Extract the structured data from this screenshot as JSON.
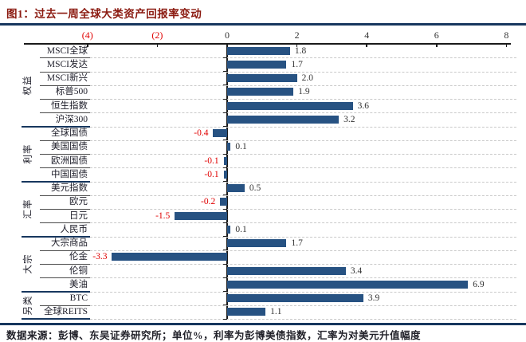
{
  "title": "图1：过去一周全球大类资产回报率变动",
  "footer": "数据来源：彭博、东吴证券研究所；单位%，利率为彭博美债指数，汇率为对美元升值幅度",
  "colors": {
    "bar": "#275282",
    "title": "#8b1a10",
    "negative_label": "#e00000",
    "positive_label": "#333333",
    "axis": "#1a1a1a",
    "rule": "#17375e",
    "grid": "#c9c9c9"
  },
  "chart_data": {
    "type": "bar",
    "orientation": "horizontal",
    "unit": "%",
    "xlim": [
      -6,
      8
    ],
    "grid": "dashed-horizontal",
    "xticks": [
      {
        "value": -4,
        "label": "(4)",
        "negative": true
      },
      {
        "value": -2,
        "label": "(2)",
        "negative": true
      },
      {
        "value": 0,
        "label": "0",
        "negative": false
      },
      {
        "value": 2,
        "label": "2",
        "negative": false
      },
      {
        "value": 4,
        "label": "4",
        "negative": false
      },
      {
        "value": 6,
        "label": "6",
        "negative": false
      },
      {
        "value": 8,
        "label": "8",
        "negative": false
      }
    ],
    "groups": [
      {
        "name": "权益",
        "items": [
          {
            "label": "MSCI全球",
            "value": 1.8
          },
          {
            "label": "MSCI发达",
            "value": 1.7
          },
          {
            "label": "MSCI新兴",
            "value": 2.0
          },
          {
            "label": "标普500",
            "value": 1.9
          },
          {
            "label": "恒生指数",
            "value": 3.6
          },
          {
            "label": "沪深300",
            "value": 3.2
          }
        ]
      },
      {
        "name": "利率",
        "items": [
          {
            "label": "全球国债",
            "value": -0.4
          },
          {
            "label": "美国国债",
            "value": 0.1
          },
          {
            "label": "欧洲国债",
            "value": -0.1
          },
          {
            "label": "中国国债",
            "value": -0.1
          }
        ]
      },
      {
        "name": "汇率",
        "items": [
          {
            "label": "美元指数",
            "value": 0.5
          },
          {
            "label": "欧元",
            "value": -0.2
          },
          {
            "label": "日元",
            "value": -1.5
          },
          {
            "label": "人民币",
            "value": 0.1
          }
        ]
      },
      {
        "name": "大宗",
        "items": [
          {
            "label": "大宗商品",
            "value": 1.7
          },
          {
            "label": "伦金",
            "value": -3.3
          },
          {
            "label": "伦铜",
            "value": 3.4
          },
          {
            "label": "美油",
            "value": 6.9
          }
        ]
      },
      {
        "name": "另类",
        "items": [
          {
            "label": "BTC",
            "value": 3.9
          },
          {
            "label": "全球REITS",
            "value": 1.1
          }
        ]
      }
    ]
  }
}
